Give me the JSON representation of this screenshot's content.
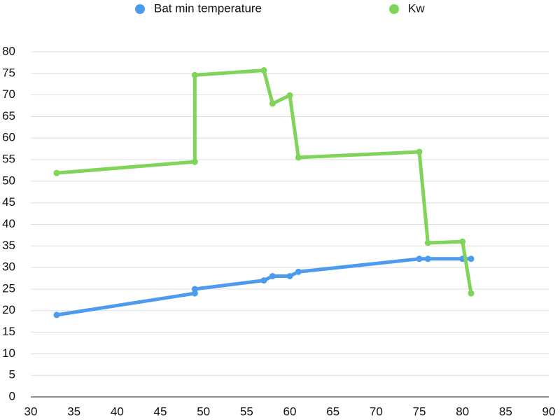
{
  "chart_data": {
    "type": "line",
    "series": [
      {
        "name": "Bat min temperature",
        "color": "#4d9bee",
        "x": [
          33,
          49,
          49,
          57,
          58,
          60,
          61,
          75,
          76,
          80,
          81
        ],
        "values": [
          19,
          24,
          25,
          27,
          28,
          28,
          29,
          32,
          32,
          32,
          32
        ]
      },
      {
        "name": "Kw",
        "color": "#80d45a",
        "x": [
          33,
          49,
          49,
          57,
          58,
          60,
          61,
          75,
          76,
          80,
          81
        ],
        "values": [
          51.9,
          54.5,
          74.6,
          75.7,
          68,
          69.9,
          55.5,
          56.8,
          35.7,
          36,
          24
        ]
      }
    ],
    "xlim": [
      30,
      90
    ],
    "xticks": [
      30,
      35,
      40,
      45,
      50,
      55,
      60,
      65,
      70,
      75,
      80,
      85,
      90
    ],
    "ylim": [
      0,
      80
    ],
    "yticks": [
      0,
      5,
      10,
      15,
      20,
      25,
      30,
      35,
      40,
      45,
      50,
      55,
      60,
      65,
      70,
      75,
      80
    ],
    "grid": true,
    "legend": "top"
  }
}
